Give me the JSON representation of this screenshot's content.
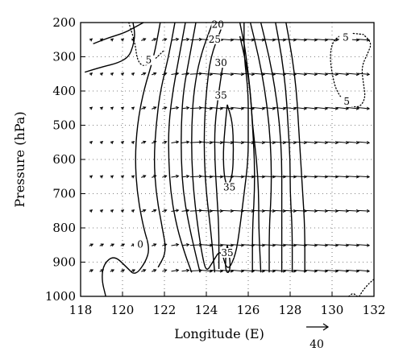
{
  "chart_data": {
    "type": "contour-vector",
    "xlabel": "Longitude (E)",
    "ylabel": "Pressure (hPa)",
    "xlim": [
      118,
      132
    ],
    "ylim": [
      1000,
      200
    ],
    "x_ticks": [
      "118",
      "120",
      "122",
      "124",
      "126",
      "128",
      "130",
      "132"
    ],
    "y_ticks": [
      "200",
      "300",
      "400",
      "500",
      "600",
      "700",
      "800",
      "900",
      "1000"
    ],
    "grid": "dotted",
    "reference_vector": {
      "label": "40",
      "value": 40
    },
    "contour_labels": [
      {
        "text": "20",
        "lon": 124.55,
        "p": 213
      },
      {
        "text": "25",
        "lon": 124.4,
        "p": 256
      },
      {
        "text": "30",
        "lon": 124.7,
        "p": 325
      },
      {
        "text": "35",
        "lon": 124.7,
        "p": 420
      },
      {
        "text": "35",
        "lon": 125.1,
        "p": 688
      },
      {
        "text": "35",
        "lon": 125.0,
        "p": 880
      },
      {
        "text": "5",
        "lon": 121.25,
        "p": 317
      },
      {
        "text": "0",
        "lon": 120.85,
        "p": 855
      },
      {
        "text": "5",
        "lon": 130.65,
        "p": 250
      },
      {
        "text": "5",
        "lon": 130.7,
        "p": 438
      }
    ],
    "contours": [
      {
        "value": 0,
        "style": "solid",
        "points": [
          [
            118.6,
            262
          ],
          [
            119.3,
            245
          ],
          [
            120.1,
            230
          ],
          [
            120.7,
            210
          ],
          [
            121.0,
            200
          ]
        ]
      },
      {
        "value": 0,
        "style": "solid",
        "points": [
          [
            118.2,
            345
          ],
          [
            119.0,
            330
          ],
          [
            119.8,
            318
          ],
          [
            120.3,
            300
          ],
          [
            120.5,
            270
          ],
          [
            120.6,
            235
          ],
          [
            120.5,
            200
          ]
        ]
      },
      {
        "value": 0,
        "style": "solid",
        "points": [
          [
            121.8,
            200
          ],
          [
            121.5,
            300
          ],
          [
            121.0,
            400
          ],
          [
            120.7,
            500
          ],
          [
            120.6,
            600
          ],
          [
            120.7,
            700
          ],
          [
            121.0,
            800
          ],
          [
            121.3,
            860
          ],
          [
            121.1,
            900
          ],
          [
            120.6,
            940
          ],
          [
            120.2,
            915
          ],
          [
            119.6,
            880
          ],
          [
            119.1,
            905
          ],
          [
            119.0,
            950
          ],
          [
            119.2,
            1000
          ]
        ]
      },
      {
        "value": 5,
        "style": "dotted",
        "points": [
          [
            120.3,
            200
          ],
          [
            120.6,
            260
          ],
          [
            120.7,
            310
          ],
          [
            121.0,
            330
          ],
          [
            121.5,
            310
          ],
          [
            122.0,
            280
          ]
        ]
      },
      {
        "value": 5,
        "style": "solid",
        "points": [
          [
            122.5,
            200
          ],
          [
            122.2,
            300
          ],
          [
            121.8,
            400
          ],
          [
            121.6,
            500
          ],
          [
            121.5,
            600
          ],
          [
            121.6,
            700
          ],
          [
            121.9,
            800
          ],
          [
            122.1,
            870
          ],
          [
            121.7,
            915
          ]
        ]
      },
      {
        "value": 10,
        "style": "solid",
        "points": [
          [
            123.0,
            200
          ],
          [
            122.7,
            300
          ],
          [
            122.4,
            400
          ],
          [
            122.2,
            500
          ],
          [
            122.2,
            600
          ],
          [
            122.3,
            700
          ],
          [
            122.6,
            800
          ],
          [
            123.0,
            880
          ],
          [
            123.3,
            930
          ]
        ]
      },
      {
        "value": 15,
        "style": "solid",
        "points": [
          [
            123.5,
            200
          ],
          [
            123.2,
            300
          ],
          [
            122.9,
            400
          ],
          [
            122.8,
            500
          ],
          [
            122.8,
            600
          ],
          [
            122.9,
            700
          ],
          [
            123.2,
            800
          ],
          [
            123.5,
            880
          ],
          [
            123.7,
            930
          ]
        ]
      },
      {
        "value": 15,
        "style": "solid",
        "points": [
          [
            126.1,
            200
          ],
          [
            126.5,
            300
          ],
          [
            126.8,
            400
          ],
          [
            127.0,
            500
          ],
          [
            127.1,
            600
          ],
          [
            127.1,
            700
          ],
          [
            127.0,
            800
          ],
          [
            127.0,
            930
          ]
        ]
      },
      {
        "value": 20,
        "style": "solid",
        "points": [
          [
            124.3,
            200
          ],
          [
            123.7,
            300
          ],
          [
            123.4,
            400
          ],
          [
            123.3,
            500
          ],
          [
            123.3,
            600
          ],
          [
            123.4,
            700
          ],
          [
            123.6,
            800
          ],
          [
            123.8,
            880
          ],
          [
            124.0,
            930
          ],
          [
            124.3,
            900
          ],
          [
            124.7,
            860
          ],
          [
            125.0,
            930
          ],
          [
            125.4,
            880
          ],
          [
            125.6,
            800
          ],
          [
            125.8,
            700
          ],
          [
            126.0,
            600
          ],
          [
            126.0,
            500
          ],
          [
            126.0,
            400
          ],
          [
            125.8,
            300
          ],
          [
            125.8,
            200
          ]
        ]
      },
      {
        "value": 20,
        "style": "solid",
        "points": [
          [
            126.6,
            200
          ],
          [
            127.0,
            300
          ],
          [
            127.3,
            400
          ],
          [
            127.5,
            500
          ],
          [
            127.6,
            600
          ],
          [
            127.6,
            700
          ],
          [
            127.6,
            800
          ],
          [
            127.6,
            930
          ]
        ]
      },
      {
        "value": 25,
        "style": "solid",
        "points": [
          [
            124.7,
            220
          ],
          [
            124.2,
            300
          ],
          [
            124.0,
            400
          ],
          [
            123.9,
            500
          ],
          [
            123.9,
            600
          ],
          [
            124.0,
            700
          ],
          [
            124.2,
            800
          ],
          [
            124.4,
            930
          ]
        ]
      },
      {
        "value": 25,
        "style": "solid",
        "points": [
          [
            125.6,
            200
          ],
          [
            125.8,
            260
          ],
          [
            125.9,
            300
          ],
          [
            126.1,
            400
          ],
          [
            126.2,
            500
          ],
          [
            126.4,
            600
          ],
          [
            126.5,
            700
          ],
          [
            126.5,
            800
          ],
          [
            126.6,
            930
          ]
        ]
      },
      {
        "value": 25,
        "style": "solid",
        "points": [
          [
            127.3,
            200
          ],
          [
            127.6,
            300
          ],
          [
            127.8,
            400
          ],
          [
            127.9,
            500
          ],
          [
            128.0,
            600
          ],
          [
            128.0,
            700
          ],
          [
            128.1,
            800
          ],
          [
            128.1,
            930
          ]
        ]
      },
      {
        "value": 30,
        "style": "solid",
        "points": [
          [
            124.8,
            320
          ],
          [
            124.6,
            400
          ],
          [
            124.4,
            500
          ],
          [
            124.4,
            600
          ],
          [
            124.5,
            700
          ],
          [
            124.6,
            800
          ],
          [
            124.6,
            920
          ]
        ]
      },
      {
        "value": 30,
        "style": "solid",
        "points": [
          [
            125.6,
            240
          ],
          [
            125.9,
            320
          ],
          [
            126.1,
            400
          ],
          [
            126.2,
            500
          ],
          [
            126.3,
            600
          ],
          [
            126.3,
            700
          ],
          [
            126.2,
            800
          ],
          [
            126.2,
            930
          ]
        ]
      },
      {
        "value": 30,
        "style": "solid",
        "points": [
          [
            127.8,
            200
          ],
          [
            128.1,
            300
          ],
          [
            128.3,
            400
          ],
          [
            128.4,
            500
          ],
          [
            128.5,
            600
          ],
          [
            128.6,
            700
          ],
          [
            128.7,
            800
          ],
          [
            128.7,
            930
          ]
        ]
      },
      {
        "value": 35,
        "style": "solid",
        "points": [
          [
            125.0,
            440
          ],
          [
            124.9,
            500
          ],
          [
            124.8,
            580
          ],
          [
            124.85,
            650
          ],
          [
            125.0,
            680
          ],
          [
            125.25,
            650
          ],
          [
            125.3,
            570
          ],
          [
            125.25,
            490
          ],
          [
            125.0,
            440
          ]
        ]
      },
      {
        "value": 35,
        "style": "solid",
        "points": [
          [
            125.0,
            850
          ],
          [
            124.9,
            900
          ],
          [
            124.95,
            930
          ],
          [
            125.1,
            930
          ],
          [
            125.15,
            900
          ],
          [
            125.0,
            850
          ]
        ]
      },
      {
        "value": 5,
        "style": "dotted",
        "points": [
          [
            131.5,
            235
          ],
          [
            130.8,
            230
          ],
          [
            130.3,
            240
          ],
          [
            130.0,
            260
          ],
          [
            129.9,
            300
          ],
          [
            130.0,
            350
          ],
          [
            130.2,
            400
          ],
          [
            130.7,
            440
          ],
          [
            131.3,
            450
          ],
          [
            131.6,
            420
          ],
          [
            131.5,
            380
          ],
          [
            131.4,
            330
          ],
          [
            131.7,
            290
          ],
          [
            131.9,
            260
          ],
          [
            131.5,
            235
          ]
        ]
      },
      {
        "value": 5,
        "style": "dotted",
        "points": [
          [
            131.3,
            1000
          ],
          [
            131.5,
            980
          ],
          [
            131.8,
            960
          ],
          [
            132.0,
            950
          ]
        ]
      },
      {
        "value": 5,
        "style": "dotted",
        "points": [
          [
            130.8,
            1000
          ],
          [
            131.0,
            990
          ],
          [
            131.2,
            1000
          ]
        ]
      }
    ],
    "vector_rows_hPa": [
      250,
      350,
      450,
      550,
      650,
      750,
      850,
      925
    ],
    "vector_cols_lon": [
      118.5,
      119.0,
      119.5,
      120.0,
      120.5,
      121.0,
      121.5,
      122.0,
      122.5,
      123.0,
      123.5,
      124.0,
      124.5,
      125.0,
      125.5,
      126.0,
      126.5,
      127.0,
      127.5,
      128.0,
      128.5,
      129.0,
      129.5,
      130.0,
      130.5,
      131.0,
      131.5
    ]
  }
}
